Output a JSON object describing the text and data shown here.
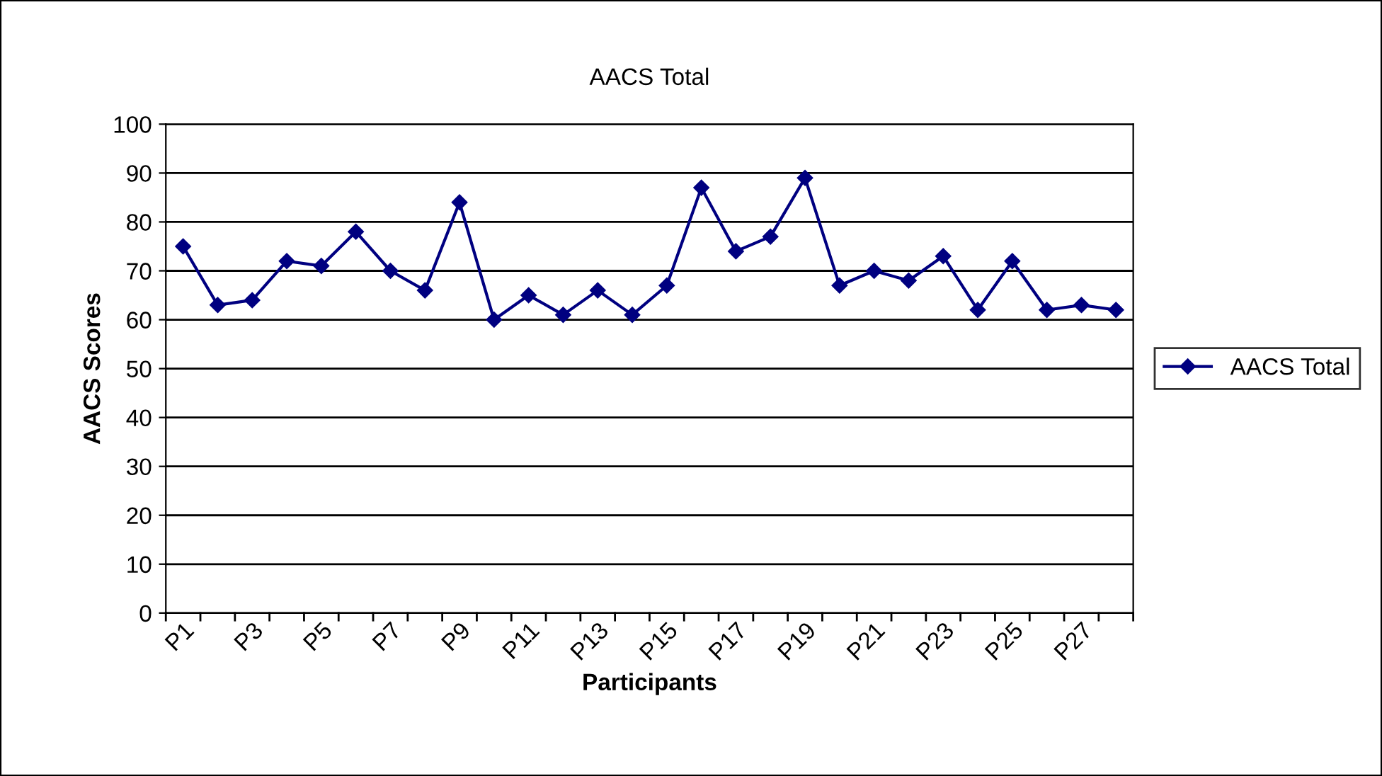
{
  "chart_data": {
    "type": "line",
    "title": "AACS Total",
    "xlabel": "Participants",
    "ylabel": "AACS Scores",
    "categories": [
      "P1",
      null,
      "P3",
      null,
      "P5",
      null,
      "P7",
      null,
      "P9",
      null,
      "P11",
      null,
      "P13",
      null,
      "P15",
      null,
      "P17",
      null,
      "P19",
      null,
      "P21",
      null,
      "P23",
      null,
      "P25",
      null,
      "P27",
      null
    ],
    "series": [
      {
        "name": "AACS Total",
        "color": "#000080",
        "values": [
          75,
          63,
          64,
          72,
          71,
          78,
          70,
          66,
          84,
          60,
          65,
          61,
          66,
          61,
          67,
          87,
          74,
          77,
          89,
          67,
          70,
          68,
          73,
          62,
          72,
          62,
          63,
          62
        ]
      }
    ],
    "ylim": [
      0,
      100
    ],
    "yticks": [
      0,
      10,
      20,
      30,
      40,
      50,
      60,
      70,
      80,
      90,
      100
    ],
    "grid": "y",
    "legend": "right",
    "marker": "diamond",
    "line_style": "solid"
  }
}
